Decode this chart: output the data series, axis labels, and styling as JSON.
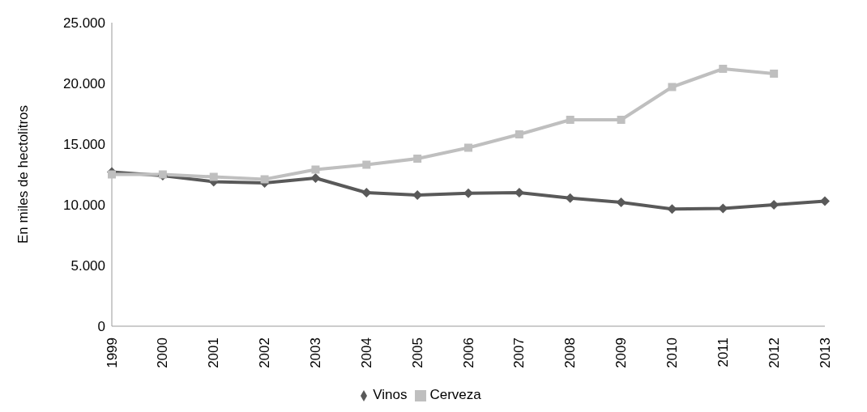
{
  "chart_data": {
    "type": "line",
    "ylabel": "En miles de hectolitros",
    "categories": [
      "1999",
      "2000",
      "2001",
      "2002",
      "2003",
      "2004",
      "2005",
      "2006",
      "2007",
      "2008",
      "2009",
      "2010",
      "2011",
      "2012",
      "2013"
    ],
    "series": [
      {
        "name": "Vinos",
        "color": "#595959",
        "marker": "diamond",
        "values": [
          12700,
          12400,
          11900,
          11800,
          12200,
          11000,
          10800,
          10950,
          11000,
          10550,
          10200,
          9650,
          9700,
          10000,
          10300
        ]
      },
      {
        "name": "Cerveza",
        "color": "#bfbfbf",
        "marker": "square",
        "values": [
          12500,
          12500,
          12300,
          12100,
          12900,
          13300,
          13800,
          14700,
          15800,
          17000,
          17000,
          19700,
          21200,
          20800,
          null
        ]
      }
    ],
    "ylim": [
      0,
      25000
    ],
    "yticks": [
      {
        "value": 0,
        "label": "0"
      },
      {
        "value": 5000,
        "label": "5.000"
      },
      {
        "value": 10000,
        "label": "10.000"
      },
      {
        "value": 15000,
        "label": "15.000"
      },
      {
        "value": 20000,
        "label": "20.000"
      },
      {
        "value": 25000,
        "label": "25.000"
      }
    ],
    "grid": false,
    "legend": "bottom"
  }
}
